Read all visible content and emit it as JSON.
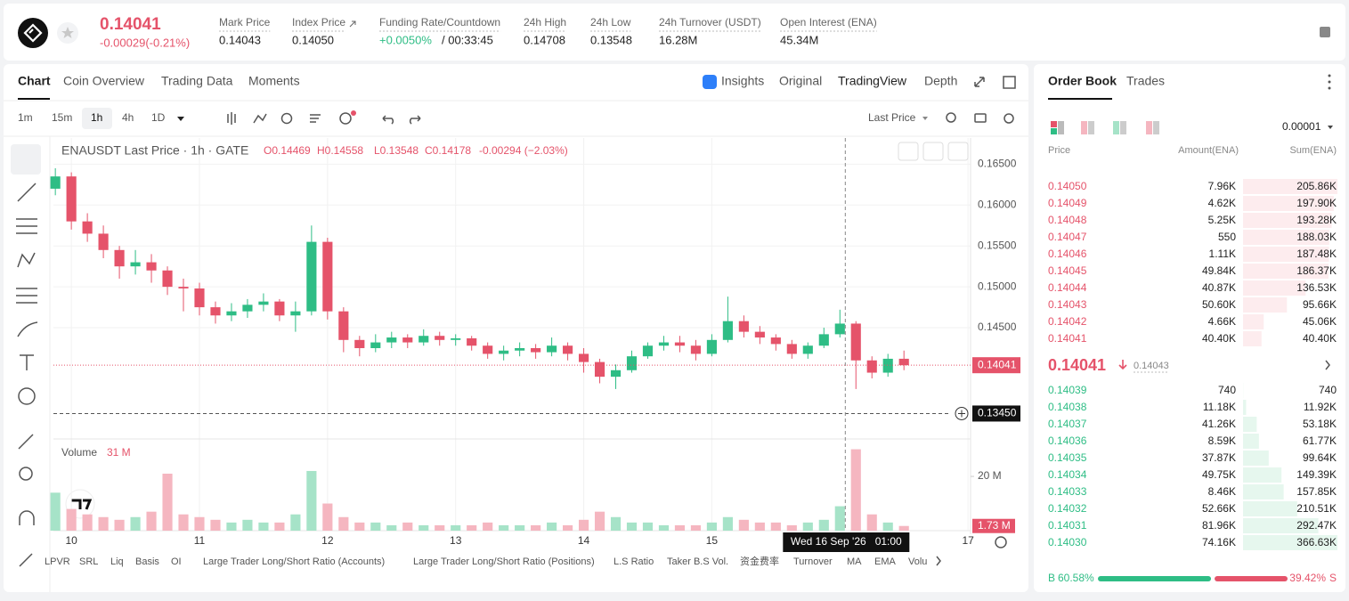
{
  "header": {
    "price": "0.14041",
    "change": "-0.00029(-0.21%)",
    "stats": [
      {
        "label": "Mark Price",
        "value": "0.14043"
      },
      {
        "label": "Index Price",
        "value": "0.14050"
      },
      {
        "label": "Funding Rate/Countdown",
        "value": "+0.0050%",
        "countdown": "/ 00:33:45"
      },
      {
        "label": "24h High",
        "value": "0.14708"
      },
      {
        "label": "24h Low",
        "value": "0.13548"
      },
      {
        "label": "24h Turnover (USDT)",
        "value": "16.28M"
      },
      {
        "label": "Open Interest (ENA)",
        "value": "45.34M"
      }
    ]
  },
  "tabs": [
    "Chart",
    "Coin Overview",
    "Trading Data",
    "Moments"
  ],
  "views": [
    "Insights",
    "Original",
    "TradingView",
    "Depth"
  ],
  "intervals": [
    "1m",
    "15m",
    "1h",
    "4h",
    "1D"
  ],
  "price_type": "Last Price",
  "legend": {
    "symbol": "ENAUSDT Last Price · 1h · GATE",
    "o": "O0.14469",
    "h": "H0.14558",
    "l": "L0.13548",
    "c": "C0.14178",
    "change": "-0.00294 (−2.03%)"
  },
  "volume_legend": {
    "label": "Volume",
    "value": "31 M"
  },
  "chart_data": {
    "type": "candlestick",
    "up_color": "#2ebd85",
    "down_color": "#e5536a",
    "x": [
      9.875,
      10,
      10.125,
      10.25,
      10.375,
      10.5,
      10.625,
      10.75,
      10.875,
      11,
      11.125,
      11.25,
      11.375,
      11.5,
      11.625,
      11.75,
      11.875,
      12,
      12.125,
      12.25,
      12.375,
      12.5,
      12.625,
      12.75,
      12.875,
      13,
      13.125,
      13.25,
      13.375,
      13.5,
      13.625,
      13.75,
      13.875,
      14,
      14.125,
      14.25,
      14.375,
      14.5,
      14.625,
      14.75,
      14.875,
      15,
      15.125,
      15.25,
      15.375,
      15.5,
      15.625,
      15.75,
      15.875,
      16,
      16.125,
      16.25,
      16.375,
      16.5
    ],
    "open": [
      0.162,
      0.1635,
      0.158,
      0.1565,
      0.1545,
      0.1525,
      0.153,
      0.152,
      0.15,
      0.1498,
      0.1475,
      0.1465,
      0.147,
      0.1478,
      0.1482,
      0.1465,
      0.147,
      0.1555,
      0.147,
      0.1435,
      0.1425,
      0.1432,
      0.1438,
      0.1432,
      0.144,
      0.1435,
      0.1437,
      0.1428,
      0.1418,
      0.1422,
      0.1425,
      0.142,
      0.1428,
      0.1418,
      0.1408,
      0.139,
      0.1398,
      0.1415,
      0.1428,
      0.1432,
      0.1428,
      0.1418,
      0.1435,
      0.1458,
      0.1445,
      0.1438,
      0.143,
      0.1418,
      0.1428,
      0.1442,
      0.1455,
      0.141,
      0.1395,
      0.1412
    ],
    "high": [
      0.1645,
      0.164,
      0.159,
      0.1575,
      0.155,
      0.1545,
      0.154,
      0.1525,
      0.151,
      0.1505,
      0.1482,
      0.148,
      0.1485,
      0.1492,
      0.1485,
      0.1482,
      0.1575,
      0.156,
      0.1475,
      0.144,
      0.1442,
      0.1445,
      0.1442,
      0.1448,
      0.1445,
      0.1442,
      0.144,
      0.1432,
      0.1428,
      0.1432,
      0.143,
      0.1438,
      0.1432,
      0.1425,
      0.1412,
      0.1405,
      0.1422,
      0.1432,
      0.144,
      0.144,
      0.1435,
      0.1442,
      0.1488,
      0.1465,
      0.1452,
      0.1442,
      0.1435,
      0.1432,
      0.145,
      0.1472,
      0.1458,
      0.1415,
      0.1418,
      0.1422
    ],
    "low": [
      0.1612,
      0.157,
      0.1555,
      0.1535,
      0.151,
      0.1515,
      0.1505,
      0.149,
      0.147,
      0.1465,
      0.1455,
      0.1458,
      0.1462,
      0.147,
      0.1458,
      0.1445,
      0.1465,
      0.146,
      0.142,
      0.1415,
      0.142,
      0.1425,
      0.1425,
      0.1428,
      0.1428,
      0.1428,
      0.1422,
      0.1412,
      0.141,
      0.1415,
      0.1412,
      0.1415,
      0.141,
      0.1395,
      0.1382,
      0.1375,
      0.1395,
      0.1412,
      0.1422,
      0.142,
      0.141,
      0.1415,
      0.1432,
      0.1438,
      0.143,
      0.1422,
      0.1412,
      0.1412,
      0.1425,
      0.1438,
      0.1375,
      0.1388,
      0.139,
      0.1398
    ],
    "close": [
      0.1635,
      0.158,
      0.1565,
      0.1545,
      0.1525,
      0.153,
      0.152,
      0.15,
      0.1498,
      0.1475,
      0.1465,
      0.147,
      0.1478,
      0.1482,
      0.1465,
      0.147,
      0.1555,
      0.147,
      0.1435,
      0.1425,
      0.1432,
      0.1438,
      0.1432,
      0.144,
      0.1435,
      0.1437,
      0.1428,
      0.1418,
      0.1422,
      0.1425,
      0.142,
      0.1428,
      0.1418,
      0.1408,
      0.139,
      0.1398,
      0.1415,
      0.1428,
      0.1432,
      0.1428,
      0.1418,
      0.1435,
      0.1458,
      0.1445,
      0.1438,
      0.143,
      0.1418,
      0.1428,
      0.1442,
      0.1455,
      0.141,
      0.1395,
      0.1412,
      0.14041
    ],
    "volume": [
      14,
      8,
      6,
      5,
      4,
      5,
      7,
      21,
      6,
      5,
      4,
      3,
      4,
      3,
      3,
      6,
      22,
      10,
      5,
      3,
      3,
      2,
      3,
      2,
      2,
      2,
      2,
      3,
      2,
      2,
      2,
      3,
      2,
      4,
      7,
      5,
      3,
      3,
      2,
      2,
      2,
      3,
      5,
      4,
      3,
      3,
      2,
      3,
      4,
      9,
      30,
      6,
      3,
      1.73
    ],
    "xlim": [
      9.86,
      17.02
    ],
    "xticks": [
      10,
      11,
      12,
      13,
      14,
      15,
      17
    ],
    "ylim": [
      0.1315,
      0.1682
    ],
    "yticks": [
      {
        "value": 0.165,
        "label": "0.16500"
      },
      {
        "value": 0.16,
        "label": "0.16000"
      },
      {
        "value": 0.155,
        "label": "0.15500"
      },
      {
        "value": 0.15,
        "label": "0.15000"
      },
      {
        "value": 0.145,
        "label": "0.14500"
      }
    ],
    "last_price": {
      "value": 0.14041,
      "label": "0.14041"
    },
    "crosshair": {
      "value": 0.1345,
      "label": "0.13450"
    },
    "crosshair_x": 16.042,
    "crosshair_time": "Wed 16 Sep '26   01:00",
    "volume_ylim": [
      0,
      33.8
    ],
    "volume_ticks": [
      {
        "value": 20,
        "label": "20 M"
      }
    ],
    "volume_last": {
      "value": 1.73,
      "label": "1.73 M"
    },
    "grid": true
  },
  "indicators": [
    "LPVR",
    "SRL",
    "Liq",
    "Basis",
    "OI",
    "Large Trader Long/Short Ratio (Accounts)",
    "Large Trader Long/Short Ratio (Positions)",
    "L.S Ratio",
    "Taker B.S Vol.",
    "资金费率",
    "Turnover",
    "MA",
    "EMA",
    "Volu"
  ],
  "order_book": {
    "tabs": [
      "Order Book",
      "Trades"
    ],
    "precision": "0.00001",
    "columns": [
      "Price",
      "Amount(ENA)",
      "Sum(ENA)"
    ],
    "asks": [
      {
        "price": "0.14050",
        "amount": "7.96K",
        "sum": {
          "value": 205860,
          "label": "205.86K"
        }
      },
      {
        "price": "0.14049",
        "amount": "4.62K",
        "sum": {
          "value": 197900,
          "label": "197.90K"
        }
      },
      {
        "price": "0.14048",
        "amount": "5.25K",
        "sum": {
          "value": 193280,
          "label": "193.28K"
        }
      },
      {
        "price": "0.14047",
        "amount": "550",
        "sum": {
          "value": 188030,
          "label": "188.03K"
        }
      },
      {
        "price": "0.14046",
        "amount": "1.11K",
        "sum": {
          "value": 187480,
          "label": "187.48K"
        }
      },
      {
        "price": "0.14045",
        "amount": "49.84K",
        "sum": {
          "value": 186370,
          "label": "186.37K"
        }
      },
      {
        "price": "0.14044",
        "amount": "40.87K",
        "sum": {
          "value": 136530,
          "label": "136.53K"
        }
      },
      {
        "price": "0.14043",
        "amount": "50.60K",
        "sum": {
          "value": 95660,
          "label": "95.66K"
        }
      },
      {
        "price": "0.14042",
        "amount": "4.66K",
        "sum": {
          "value": 45060,
          "label": "45.06K"
        }
      },
      {
        "price": "0.14041",
        "amount": "40.40K",
        "sum": {
          "value": 40400,
          "label": "40.40K"
        }
      }
    ],
    "mid_price": "0.14041",
    "mark_price": "0.14043",
    "bids": [
      {
        "price": "0.14039",
        "amount": "740",
        "sum": 740
      },
      {
        "price": "0.14038",
        "amount": "11.18K",
        "sum": {
          "value": 11920,
          "label": "11.92K"
        }
      },
      {
        "price": "0.14037",
        "amount": "41.26K",
        "sum": {
          "value": 53180,
          "label": "53.18K"
        }
      },
      {
        "price": "0.14036",
        "amount": "8.59K",
        "sum": {
          "value": 61770,
          "label": "61.77K"
        }
      },
      {
        "price": "0.14035",
        "amount": "37.87K",
        "sum": {
          "value": 99640,
          "label": "99.64K"
        }
      },
      {
        "price": "0.14034",
        "amount": "49.75K",
        "sum": {
          "value": 149390,
          "label": "149.39K"
        }
      },
      {
        "price": "0.14033",
        "amount": "8.46K",
        "sum": {
          "value": 157850,
          "label": "157.85K"
        }
      },
      {
        "price": "0.14032",
        "amount": "52.66K",
        "sum": {
          "value": 210510,
          "label": "210.51K"
        }
      },
      {
        "price": "0.14031",
        "amount": "81.96K",
        "sum": {
          "value": 292470,
          "label": "292.47K"
        }
      },
      {
        "price": "0.14030",
        "amount": "74.16K",
        "sum": {
          "value": 366630,
          "label": "366.63K"
        }
      }
    ],
    "buy_letter": "B",
    "sell_letter": "S",
    "buy": {
      "value": 60.58,
      "label": "60.58%"
    },
    "sell": {
      "value": 39.42,
      "label": "39.42%"
    }
  }
}
